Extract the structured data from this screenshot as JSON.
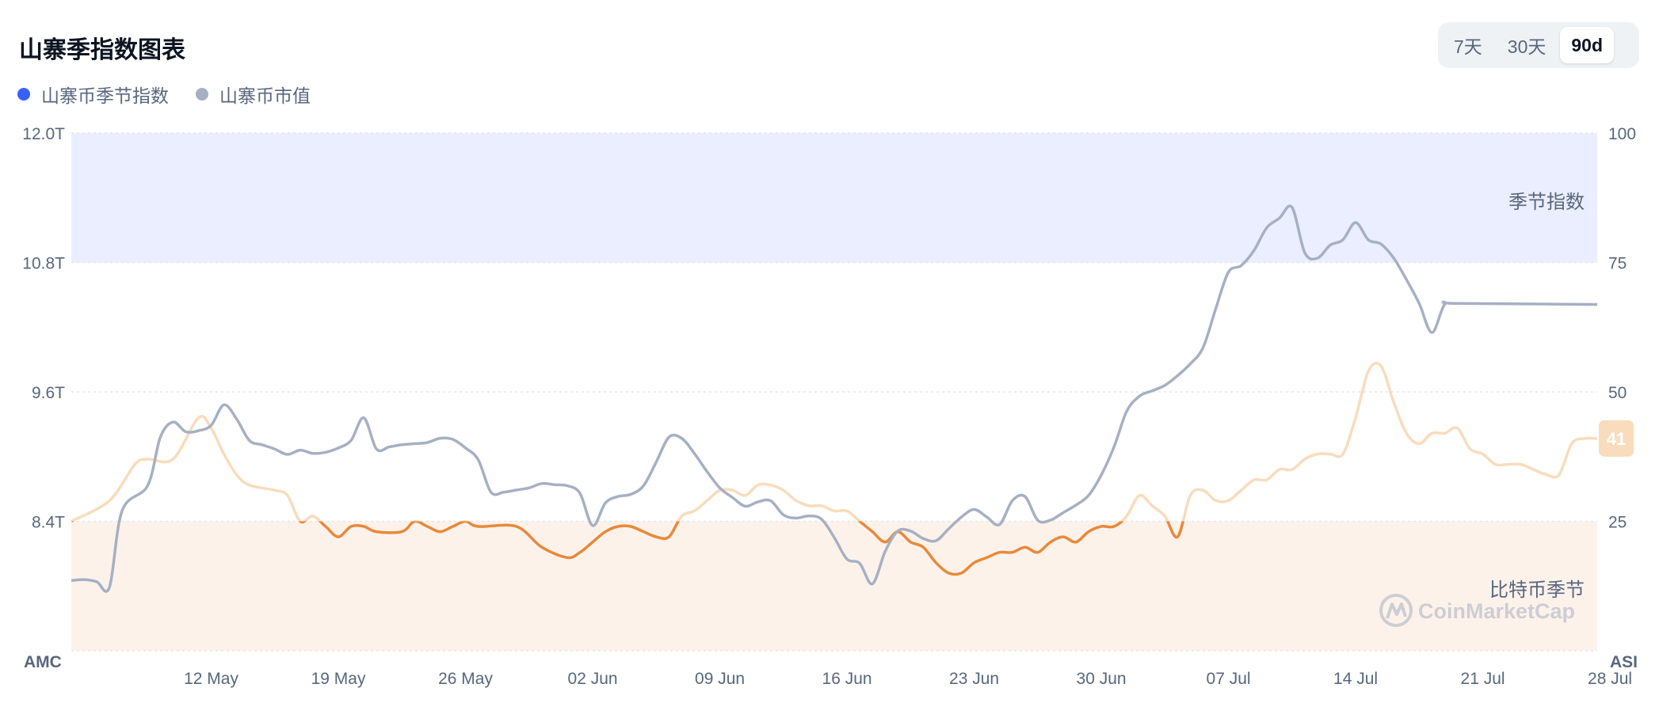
{
  "header": {
    "title": "山寨季指数图表",
    "range_buttons": [
      "7天",
      "30天",
      "90d"
    ],
    "active_range": "90d"
  },
  "legend": [
    {
      "label": "山寨币季节指数",
      "color": "#3861fb"
    },
    {
      "label": "山寨币市值",
      "color": "#a6b0c3"
    }
  ],
  "chart_data": {
    "type": "line",
    "left_axis": {
      "ticks": [
        "12.0T",
        "10.8T",
        "9.6T",
        "8.4T"
      ],
      "bottom_label": "AMC",
      "range": [
        7.2,
        12.0
      ]
    },
    "right_axis": {
      "ticks": [
        "100",
        "75",
        "50",
        "25"
      ],
      "bottom_label": "ASI",
      "range": [
        0,
        100
      ]
    },
    "x_labels": [
      "12 May",
      "19 May",
      "26 May",
      "02 Jun",
      "09 Jun",
      "16 Jun",
      "23 Jun",
      "30 Jun",
      "07 Jul",
      "14 Jul",
      "21 Jul",
      "28 Jul"
    ],
    "bands": [
      {
        "label": "季节指数",
        "from": 75,
        "to": 100,
        "color": "#ebeeff"
      },
      {
        "label": "比特币季节",
        "from": 0,
        "to": 25,
        "color": "#fdf2ea"
      }
    ],
    "current_index": "41",
    "watermark": "CoinMarketCap",
    "colors": {
      "index_band": "#f8dcbc",
      "index_orange": "#e8893a",
      "index_blue": "#c9d1e6",
      "market_cap": "#a6b0c3",
      "badge_bg": "#f8dcbc",
      "badge_text": "#ffffff"
    },
    "series": [
      {
        "name": "山寨币季节指数",
        "axis": "right",
        "points": [
          [
            0,
            25
          ],
          [
            3,
            29
          ],
          [
            5,
            36
          ],
          [
            6,
            37
          ],
          [
            8,
            37
          ],
          [
            10,
            45
          ],
          [
            11,
            43
          ],
          [
            12,
            38
          ],
          [
            13,
            34
          ],
          [
            14,
            32
          ],
          [
            16,
            31
          ],
          [
            17,
            30
          ],
          [
            18,
            25
          ],
          [
            19,
            26
          ],
          [
            20,
            24
          ],
          [
            21,
            22
          ],
          [
            22,
            24
          ],
          [
            23,
            24
          ],
          [
            24,
            23
          ],
          [
            26,
            23
          ],
          [
            27,
            25
          ],
          [
            28,
            24
          ],
          [
            29,
            23
          ],
          [
            30,
            24
          ],
          [
            31,
            25
          ],
          [
            32,
            24
          ],
          [
            35,
            24
          ],
          [
            37,
            20
          ],
          [
            39,
            18
          ],
          [
            40,
            19
          ],
          [
            41,
            21
          ],
          [
            42,
            23
          ],
          [
            43,
            24
          ],
          [
            44,
            24
          ],
          [
            45,
            23
          ],
          [
            46,
            22
          ],
          [
            47,
            22
          ],
          [
            48,
            26
          ],
          [
            49,
            27
          ],
          [
            50,
            29
          ],
          [
            51,
            31
          ],
          [
            52,
            31
          ],
          [
            53,
            30
          ],
          [
            54,
            32
          ],
          [
            55,
            32
          ],
          [
            56,
            31
          ],
          [
            57,
            29
          ],
          [
            58,
            28
          ],
          [
            59,
            28
          ],
          [
            60,
            27
          ],
          [
            61,
            27
          ],
          [
            62,
            25
          ],
          [
            63,
            23
          ],
          [
            64,
            21
          ],
          [
            65,
            23
          ],
          [
            66,
            21
          ],
          [
            67,
            20
          ],
          [
            68,
            17
          ],
          [
            69,
            15
          ],
          [
            70,
            15
          ],
          [
            71,
            17
          ],
          [
            72,
            18
          ],
          [
            73,
            19
          ],
          [
            74,
            19
          ],
          [
            75,
            20
          ],
          [
            76,
            19
          ],
          [
            77,
            21
          ],
          [
            78,
            22
          ],
          [
            79,
            21
          ],
          [
            80,
            23
          ],
          [
            81,
            24
          ],
          [
            82,
            24
          ],
          [
            83,
            26
          ],
          [
            84,
            30
          ],
          [
            85,
            28
          ],
          [
            86,
            26
          ],
          [
            87,
            22
          ],
          [
            88,
            30
          ],
          [
            89,
            31
          ],
          [
            90,
            29
          ],
          [
            91,
            29
          ],
          [
            92,
            31
          ],
          [
            93,
            33
          ],
          [
            94,
            33
          ],
          [
            95,
            35
          ],
          [
            96,
            35
          ],
          [
            97,
            37
          ],
          [
            98,
            38
          ],
          [
            99,
            38
          ],
          [
            100,
            38
          ],
          [
            101,
            45
          ],
          [
            102,
            54
          ],
          [
            103,
            55
          ],
          [
            104,
            48
          ],
          [
            105,
            42
          ],
          [
            106,
            40
          ],
          [
            107,
            42
          ],
          [
            108,
            42
          ],
          [
            109,
            43
          ],
          [
            110,
            39
          ],
          [
            111,
            38
          ],
          [
            112,
            36
          ],
          [
            113,
            36
          ],
          [
            114,
            36
          ],
          [
            115,
            35
          ],
          [
            116,
            34
          ],
          [
            117,
            34
          ],
          [
            118,
            40
          ],
          [
            119,
            41
          ],
          [
            120,
            41
          ]
        ]
      },
      {
        "name": "山寨币市值",
        "axis": "left",
        "points": [
          [
            0,
            7.85
          ],
          [
            1,
            7.86
          ],
          [
            2,
            7.84
          ],
          [
            3,
            7.79
          ],
          [
            4,
            8.5
          ],
          [
            6,
            8.73
          ],
          [
            7,
            9.18
          ],
          [
            8,
            9.32
          ],
          [
            9,
            9.23
          ],
          [
            10,
            9.24
          ],
          [
            11,
            9.29
          ],
          [
            12,
            9.48
          ],
          [
            13,
            9.35
          ],
          [
            14,
            9.15
          ],
          [
            15,
            9.11
          ],
          [
            16,
            9.07
          ],
          [
            17,
            9.02
          ],
          [
            18,
            9.06
          ],
          [
            19,
            9.03
          ],
          [
            20,
            9.04
          ],
          [
            21,
            9.08
          ],
          [
            22,
            9.15
          ],
          [
            23,
            9.36
          ],
          [
            24,
            9.07
          ],
          [
            25,
            9.09
          ],
          [
            26,
            9.11
          ],
          [
            27,
            9.12
          ],
          [
            28,
            9.13
          ],
          [
            29,
            9.17
          ],
          [
            30,
            9.16
          ],
          [
            31,
            9.08
          ],
          [
            32,
            8.97
          ],
          [
            33,
            8.67
          ],
          [
            34,
            8.67
          ],
          [
            35,
            8.69
          ],
          [
            36,
            8.71
          ],
          [
            37,
            8.75
          ],
          [
            38,
            8.74
          ],
          [
            39,
            8.73
          ],
          [
            40,
            8.66
          ],
          [
            41,
            8.36
          ],
          [
            42,
            8.57
          ],
          [
            43,
            8.63
          ],
          [
            44,
            8.65
          ],
          [
            45,
            8.73
          ],
          [
            46,
            8.95
          ],
          [
            47,
            9.18
          ],
          [
            48,
            9.17
          ],
          [
            49,
            9.03
          ],
          [
            50,
            8.86
          ],
          [
            51,
            8.71
          ],
          [
            52,
            8.62
          ],
          [
            53,
            8.54
          ],
          [
            54,
            8.58
          ],
          [
            55,
            8.59
          ],
          [
            56,
            8.46
          ],
          [
            57,
            8.43
          ],
          [
            58,
            8.45
          ],
          [
            59,
            8.42
          ],
          [
            60,
            8.25
          ],
          [
            61,
            8.05
          ],
          [
            62,
            8.01
          ],
          [
            63,
            7.82
          ],
          [
            64,
            8.12
          ],
          [
            65,
            8.31
          ],
          [
            66,
            8.31
          ],
          [
            67,
            8.24
          ],
          [
            68,
            8.22
          ],
          [
            69,
            8.33
          ],
          [
            70,
            8.44
          ],
          [
            71,
            8.51
          ],
          [
            72,
            8.44
          ],
          [
            73,
            8.37
          ],
          [
            74,
            8.59
          ],
          [
            75,
            8.63
          ],
          [
            76,
            8.41
          ],
          [
            77,
            8.41
          ],
          [
            78,
            8.48
          ],
          [
            79,
            8.55
          ],
          [
            80,
            8.64
          ],
          [
            81,
            8.83
          ],
          [
            82,
            9.09
          ],
          [
            83,
            9.42
          ],
          [
            84,
            9.56
          ],
          [
            85,
            9.61
          ],
          [
            86,
            9.66
          ],
          [
            87,
            9.75
          ],
          [
            88,
            9.86
          ],
          [
            89,
            10.01
          ],
          [
            90,
            10.37
          ],
          [
            91,
            10.71
          ],
          [
            92,
            10.77
          ],
          [
            93,
            10.91
          ],
          [
            94,
            11.12
          ],
          [
            95,
            11.21
          ],
          [
            96,
            11.31
          ],
          [
            97,
            10.89
          ],
          [
            98,
            10.84
          ],
          [
            99,
            10.96
          ],
          [
            100,
            11.01
          ],
          [
            101,
            11.17
          ],
          [
            102,
            11.01
          ],
          [
            103,
            10.97
          ],
          [
            104,
            10.84
          ],
          [
            105,
            10.64
          ],
          [
            106,
            10.42
          ],
          [
            107,
            10.15
          ],
          [
            108,
            10.41
          ],
          [
            109,
            10.42
          ],
          [
            120,
            10.41
          ]
        ]
      }
    ]
  }
}
